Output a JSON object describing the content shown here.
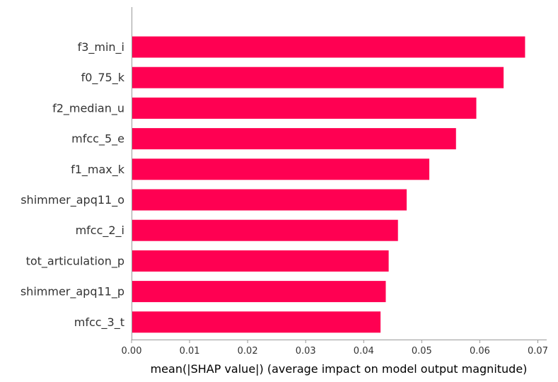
{
  "chart_data": {
    "type": "bar",
    "orientation": "horizontal",
    "categories": [
      "f3_min_i",
      "f0_75_k",
      "f2_median_u",
      "mfcc_5_e",
      "f1_max_k",
      "shimmer_apq11_o",
      "mfcc_2_i",
      "tot_articulation_p",
      "shimmer_apq11_p",
      "mfcc_3_t"
    ],
    "values": [
      0.0678,
      0.0641,
      0.0594,
      0.0559,
      0.0513,
      0.0474,
      0.0459,
      0.0443,
      0.0438,
      0.0429
    ],
    "xlabel": "mean(|SHAP value|) (average impact on model output magnitude)",
    "ylabel": "",
    "title": "",
    "xlim": [
      0,
      0.071
    ],
    "xticks": [
      0,
      0.01,
      0.02,
      0.03,
      0.04,
      0.05,
      0.06,
      0.07
    ],
    "xtick_labels": [
      "0.00",
      "0.01",
      "0.02",
      "0.03",
      "0.04",
      "0.05",
      "0.06",
      "0.07"
    ],
    "grid": false,
    "bar_color": "#ff0052",
    "axis_color": "#999999",
    "text_color": "#333333"
  }
}
